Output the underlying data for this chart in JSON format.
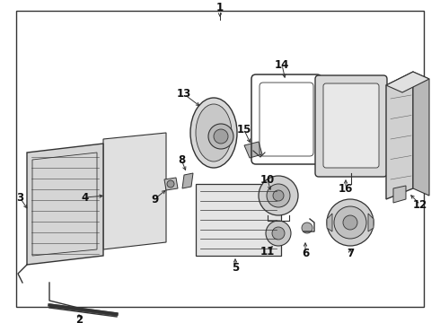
{
  "background_color": "#ffffff",
  "line_color": "#333333",
  "text_color": "#111111",
  "label_fontsize": 8.5,
  "fig_w": 4.9,
  "fig_h": 3.6,
  "dpi": 100
}
